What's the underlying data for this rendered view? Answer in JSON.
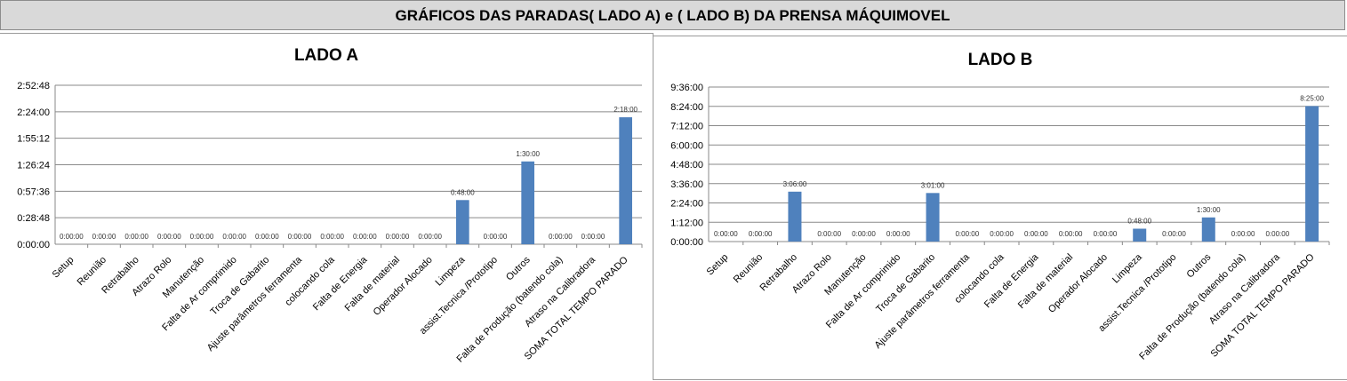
{
  "header": {
    "title": "GRÁFICOS DAS PARADAS( LADO A) e ( LADO B) DA PRENSA MÁQUIMOVEL"
  },
  "chart_data": [
    {
      "type": "bar",
      "title": "LADO A",
      "categories": [
        "Setup",
        "Reunião",
        "Retrabalho",
        "Atrazo Rolo",
        "Manutenção",
        "Falta de Ar comprimido",
        "Troca de Gabarito",
        "Ajuste parâmetros ferramenta",
        "colocando cola",
        "Falta de Energia",
        "Falta de material",
        "Operador Alocado",
        "Limpeza",
        "assist.Tecnica /Prototipo",
        "Outros",
        "Falta de Produção (batendo cola)",
        "Atraso na Calibradora",
        "SOMA TOTAL TEMPO PARADO"
      ],
      "values": [
        "0:00:00",
        "0:00:00",
        "0:00:00",
        "0:00:00",
        "0:00:00",
        "0:00:00",
        "0:00:00",
        "0:00:00",
        "0:00:00",
        "0:00:00",
        "0:00:00",
        "0:00:00",
        "0:48:00",
        "0:00:00",
        "1:30:00",
        "0:00:00",
        "0:00:00",
        "2:18:00"
      ],
      "yticks": [
        "0:00:00",
        "0:28:48",
        "0:57:36",
        "1:26:24",
        "1:55:12",
        "2:24:00",
        "2:52:48"
      ],
      "ylim": [
        "0:00:00",
        "2:52:48"
      ],
      "grid": true,
      "bar_color": "#4f81bd"
    },
    {
      "type": "bar",
      "title": "LADO B",
      "categories": [
        "Setup",
        "Reunião",
        "Retrabalho",
        "Atrazo Rolo",
        "Manutenção",
        "Falta de Ar comprimido",
        "Troca de Gabarito",
        "Ajuste parâmetros ferramenta",
        "colocando cola",
        "Falta de Energia",
        "Falta de material",
        "Operador Alocado",
        "Limpeza",
        "assist.Tecnica /Prototipo",
        "Outros",
        "Falta de Produção (batendo cola)",
        "Atraso na Calibradora",
        "SOMA TOTAL TEMPO PARADO"
      ],
      "values": [
        "0:00:00",
        "0:00:00",
        "3:06:00",
        "0:00:00",
        "0:00:00",
        "0:00:00",
        "3:01:00",
        "0:00:00",
        "0:00:00",
        "0:00:00",
        "0:00:00",
        "0:00:00",
        "0:48:00",
        "0:00:00",
        "1:30:00",
        "0:00:00",
        "0:00:00",
        "8:25:00"
      ],
      "yticks": [
        "0:00:00",
        "1:12:00",
        "2:24:00",
        "3:36:00",
        "4:48:00",
        "6:00:00",
        "7:12:00",
        "8:24:00",
        "9:36:00"
      ],
      "ylim": [
        "0:00:00",
        "9:36:00"
      ],
      "grid": true,
      "bar_color": "#4f81bd"
    }
  ]
}
